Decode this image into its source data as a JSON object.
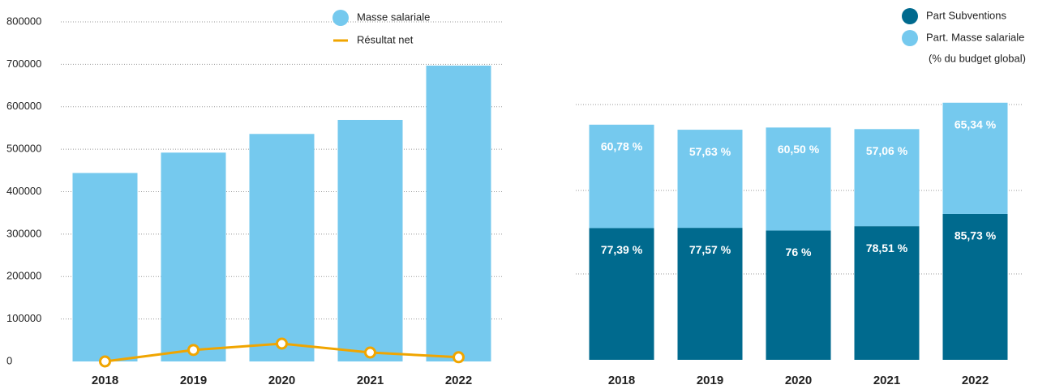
{
  "chart_data": [
    {
      "type": "bar_line",
      "categories": [
        "2018",
        "2019",
        "2020",
        "2021",
        "2022"
      ],
      "series": [
        {
          "name": "Masse salariale",
          "type": "bar",
          "color": "#75c9ee",
          "values": [
            444000,
            492000,
            536000,
            569000,
            697000
          ]
        },
        {
          "name": "Résultat net",
          "type": "line",
          "color": "#f0a500",
          "values": [
            0,
            27000,
            42000,
            21000,
            10000
          ]
        }
      ],
      "ylim": [
        0,
        800000
      ],
      "yticks": [
        0,
        100000,
        200000,
        300000,
        400000,
        500000,
        600000,
        700000,
        800000
      ],
      "grid": true,
      "legend": "top"
    },
    {
      "type": "stacked_bar",
      "categories": [
        "2018",
        "2019",
        "2020",
        "2021",
        "2022"
      ],
      "series": [
        {
          "name": "Part Subventions",
          "color": "#006a8e",
          "values": [
            77.39,
            77.57,
            76,
            78.51,
            85.73
          ],
          "value_labels": [
            "77,39 %",
            "77,57 %",
            "76 %",
            "78,51 %",
            "85,73 %"
          ]
        },
        {
          "name": "Part. Masse salariale",
          "color": "#75c9ee",
          "values": [
            60.78,
            57.63,
            60.5,
            57.06,
            65.34
          ],
          "value_labels": [
            "60,78 %",
            "57,63 %",
            "60,50 %",
            "57,06 %",
            "65,34 %"
          ]
        }
      ],
      "annotation": "(% du budget global)",
      "legend": "top-right"
    }
  ]
}
